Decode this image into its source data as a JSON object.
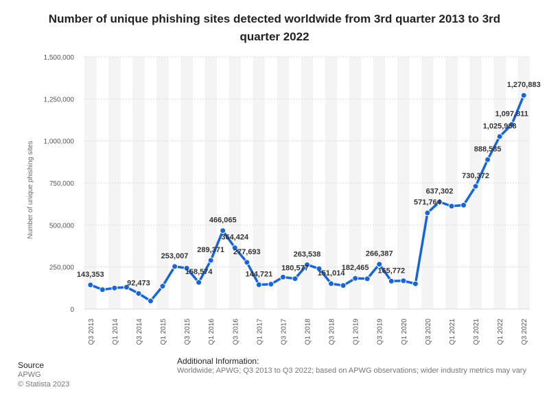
{
  "title_line1": "Number of unique phishing sites detected worldwide from 3rd quarter 2013 to 3rd",
  "title_line2": "quarter 2022",
  "source": {
    "heading": "Source",
    "name": "APWG",
    "copyright": "© Statista 2023"
  },
  "additional": {
    "heading": "Additional Information:",
    "text": "Worldwide; APWG; Q3 2013 to Q3 2022; based on APWG observations; wider industry metrics may vary"
  },
  "colors": {
    "line": "#1565e0",
    "band": "#f4f4f4",
    "grid": "#d9d9d9",
    "axis_text": "#555555",
    "label": "#333333"
  },
  "chart_data": {
    "type": "line",
    "title": "Number of unique phishing sites detected worldwide from 3rd quarter 2013 to 3rd quarter 2022",
    "ylabel": "Number of unique phishing sites",
    "xlabel": "",
    "ylim": [
      0,
      1500000
    ],
    "yticks": [
      0,
      250000,
      500000,
      750000,
      1000000,
      1250000,
      1500000
    ],
    "ytick_labels": [
      "0",
      "250,000",
      "500,000",
      "750,000",
      "1,000,000",
      "1,250,000",
      "1,500,000"
    ],
    "grid": true,
    "categories": [
      "Q3 2013",
      "Q4 2013",
      "Q1 2014",
      "Q2 2014",
      "Q3 2014",
      "Q4 2014",
      "Q1 2015",
      "Q2 2015",
      "Q3 2015",
      "Q4 2015",
      "Q1 2016",
      "Q2 2016",
      "Q3 2016",
      "Q4 2016",
      "Q1 2017",
      "Q2 2017",
      "Q3 2017",
      "Q4 2017",
      "Q1 2018",
      "Q2 2018",
      "Q3 2018",
      "Q4 2018",
      "Q1 2019",
      "Q2 2019",
      "Q3 2019",
      "Q4 2019",
      "Q1 2020",
      "Q2 2020",
      "Q3 2020",
      "Q4 2020",
      "Q1 2021",
      "Q2 2021",
      "Q3 2021",
      "Q4 2021",
      "Q1 2022",
      "Q2 2022",
      "Q3 2022"
    ],
    "shown_tick_labels": [
      "Q3 2013",
      "Q1 2014",
      "Q3 2014",
      "Q1 2015",
      "Q3 2015",
      "Q1 2016",
      "Q3 2016",
      "Q1 2017",
      "Q3 2017",
      "Q1 2018",
      "Q3 2018",
      "Q1 2019",
      "Q3 2019",
      "Q1 2020",
      "Q3 2020",
      "Q1 2021",
      "Q3 2021",
      "Q1 2022",
      "Q3 2022"
    ],
    "values": [
      143353,
      115000,
      125000,
      130000,
      92473,
      48000,
      136000,
      253007,
      243000,
      158574,
      289371,
      466065,
      364424,
      277693,
      144721,
      148000,
      190000,
      180577,
      263538,
      240000,
      151014,
      140000,
      182465,
      180000,
      266387,
      165772,
      168000,
      150000,
      571764,
      637302,
      612000,
      618000,
      730372,
      888585,
      1025968,
      1097811,
      1270883
    ],
    "labeled_points": [
      {
        "index": 0,
        "label": "143,353"
      },
      {
        "index": 4,
        "label": "92,473"
      },
      {
        "index": 7,
        "label": "253,007"
      },
      {
        "index": 9,
        "label": "158,574"
      },
      {
        "index": 10,
        "label": "289,371"
      },
      {
        "index": 11,
        "label": "466,065"
      },
      {
        "index": 12,
        "label": "364,424"
      },
      {
        "index": 13,
        "label": "277,693"
      },
      {
        "index": 14,
        "label": "144,721"
      },
      {
        "index": 17,
        "label": "180,577"
      },
      {
        "index": 18,
        "label": "263,538"
      },
      {
        "index": 20,
        "label": "151,014"
      },
      {
        "index": 22,
        "label": "182,465"
      },
      {
        "index": 24,
        "label": "266,387"
      },
      {
        "index": 25,
        "label": "165,772"
      },
      {
        "index": 28,
        "label": "571,764"
      },
      {
        "index": 29,
        "label": "637,302"
      },
      {
        "index": 32,
        "label": "730,372"
      },
      {
        "index": 33,
        "label": "888,585"
      },
      {
        "index": 34,
        "label": "1,025,968"
      },
      {
        "index": 35,
        "label": "1,097,811"
      },
      {
        "index": 36,
        "label": "1,270,883"
      }
    ]
  }
}
